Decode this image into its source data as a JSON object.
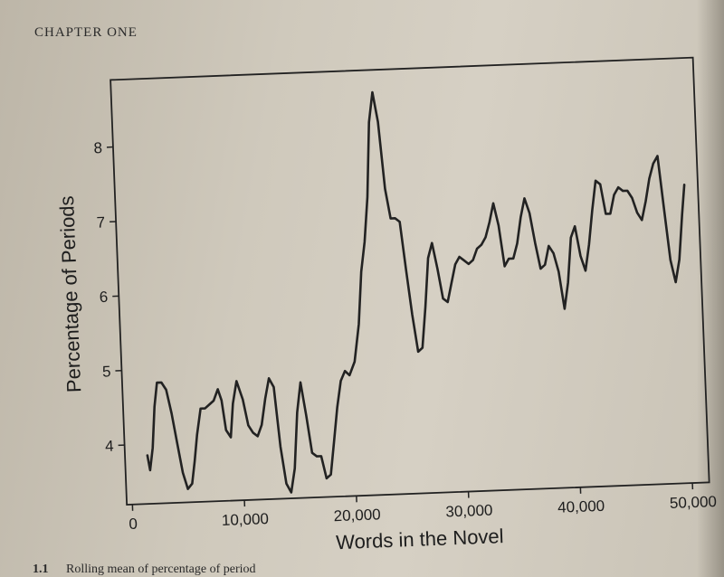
{
  "page": {
    "running_head": "CHAPTER ONE",
    "caption_number": "1.1",
    "caption_text": "Rolling mean of percentage of period"
  },
  "chart_data": {
    "type": "line",
    "xlabel": "Words in the Novel",
    "ylabel": "Percentage of Periods",
    "xlim": [
      -500,
      51500
    ],
    "ylim": [
      3.2,
      8.9
    ],
    "x_ticks": [
      0,
      10000,
      20000,
      30000,
      40000,
      50000
    ],
    "x_tick_labels": [
      "0",
      "10,000",
      "20,000",
      "30,000",
      "40,000",
      "50,000"
    ],
    "y_ticks": [
      4,
      5,
      6,
      7,
      8
    ],
    "y_tick_labels": [
      "4",
      "5",
      "6",
      "7",
      "8"
    ],
    "grid": false,
    "line_color": "#222222",
    "series": [
      {
        "x": [
          1500,
          1700,
          2000,
          2300,
          2600,
          3000,
          3400,
          3800,
          4200,
          4600,
          5000,
          5400,
          5700,
          6000,
          6400,
          6800,
          7200,
          7600,
          8000,
          8300,
          8600,
          9000,
          9300,
          9700,
          10200,
          10600,
          11000,
          11400,
          11800,
          12200,
          12600,
          13000,
          13400,
          13800,
          14200,
          14600,
          15000,
          15400,
          15800,
          16200,
          16600,
          17000,
          17400,
          17800,
          18200,
          18600,
          19000,
          19400,
          19800,
          20300,
          20800,
          21200,
          21600,
          22000,
          22400,
          22800,
          23200,
          23600,
          24000,
          24400,
          24800,
          25200,
          25600,
          26000,
          26400,
          26800,
          27200,
          27600,
          28000,
          28400,
          28800,
          29200,
          29600,
          30000,
          30400,
          30800,
          31200,
          31600,
          32000,
          32400,
          32800,
          33200,
          33600,
          34000,
          34400,
          34800,
          35200,
          35600,
          36000,
          36400,
          36800,
          37200,
          37600,
          38000,
          38400,
          38800,
          39200,
          39600,
          40000,
          40400,
          40800,
          41200,
          41600,
          42000,
          42400,
          42800,
          43200,
          43600,
          44000,
          44400,
          44800,
          45200,
          45600,
          46000,
          46400,
          46800,
          47200,
          47600,
          48000,
          48400,
          48800,
          49200,
          49600,
          50000,
          50300
        ],
        "y": [
          3.85,
          3.65,
          3.95,
          4.5,
          4.82,
          4.82,
          4.72,
          4.4,
          4.0,
          3.6,
          3.38,
          3.45,
          3.75,
          4.1,
          4.45,
          4.45,
          4.5,
          4.55,
          4.7,
          4.55,
          4.15,
          4.05,
          4.5,
          4.8,
          4.55,
          4.2,
          4.1,
          4.05,
          4.2,
          4.55,
          4.82,
          4.7,
          3.9,
          3.4,
          3.28,
          3.6,
          4.35,
          4.75,
          4.3,
          3.8,
          3.75,
          3.75,
          3.45,
          3.5,
          3.95,
          4.4,
          4.75,
          4.88,
          4.82,
          5.0,
          5.5,
          6.2,
          6.6,
          7.2,
          8.2,
          8.6,
          8.2,
          7.3,
          6.9,
          6.9,
          6.85,
          6.2,
          5.6,
          5.1,
          5.15,
          5.7,
          6.35,
          6.55,
          6.2,
          5.8,
          5.75,
          6.0,
          6.25,
          6.35,
          6.3,
          6.25,
          6.3,
          6.45,
          6.5,
          6.6,
          6.8,
          7.05,
          6.75,
          6.2,
          6.3,
          6.3,
          6.5,
          6.85,
          7.1,
          6.9,
          6.5,
          6.15,
          6.2,
          6.45,
          6.35,
          6.1,
          5.6,
          5.95,
          6.55,
          6.7,
          6.3,
          6.1,
          6.45,
          6.9,
          7.3,
          7.25,
          6.85,
          6.85,
          7.1,
          7.2,
          7.15,
          7.15,
          7.05,
          6.85,
          6.75,
          7.0,
          7.3,
          7.5,
          7.6,
          6.9,
          6.2,
          5.9,
          6.2,
          6.8,
          7.2
        ]
      }
    ]
  }
}
